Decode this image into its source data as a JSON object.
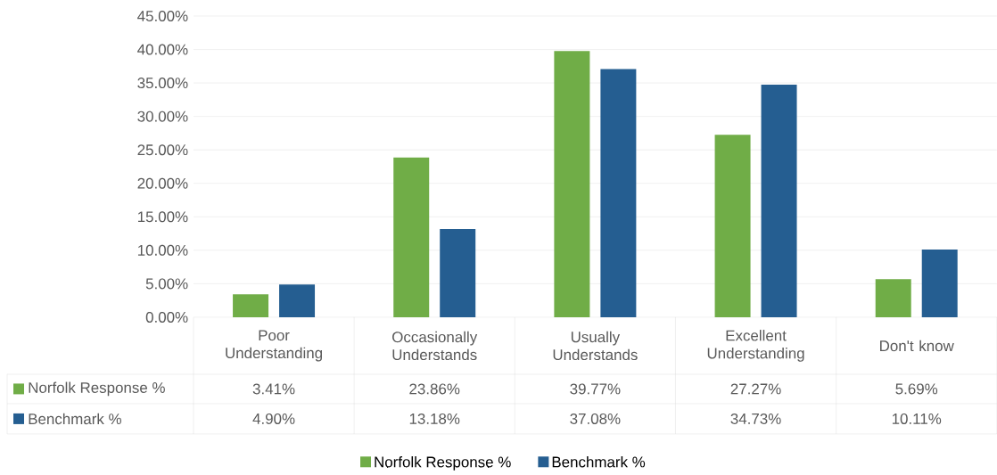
{
  "chart_data": {
    "type": "bar",
    "categories": [
      "Poor Understanding",
      "Occasionally Understands",
      "Usually Understands",
      "Excellent Understanding",
      "Don't know"
    ],
    "series": [
      {
        "name": "Norfolk Response %",
        "color": "#70ad47",
        "values": [
          3.41,
          23.86,
          39.77,
          27.27,
          5.69
        ],
        "value_labels": [
          "3.41%",
          "23.86%",
          "39.77%",
          "27.27%",
          "5.69%"
        ]
      },
      {
        "name": "Benchmark %",
        "color": "#255e91",
        "values": [
          4.9,
          13.18,
          37.08,
          34.73,
          10.11
        ],
        "value_labels": [
          "4.90%",
          "13.18%",
          "37.08%",
          "34.73%",
          "10.11%"
        ]
      }
    ],
    "ylim": [
      0,
      45
    ],
    "yticks": [
      {
        "value": 0,
        "label": "0.00%"
      },
      {
        "value": 5,
        "label": "5.00%"
      },
      {
        "value": 10,
        "label": "10.00%"
      },
      {
        "value": 15,
        "label": "15.00%"
      },
      {
        "value": 20,
        "label": "20.00%"
      },
      {
        "value": 25,
        "label": "25.00%"
      },
      {
        "value": 30,
        "label": "30.00%"
      },
      {
        "value": 35,
        "label": "35.00%"
      },
      {
        "value": 40,
        "label": "40.00%"
      },
      {
        "value": 45,
        "label": "45.00%"
      }
    ],
    "grid": "y",
    "legend": "bottom"
  }
}
